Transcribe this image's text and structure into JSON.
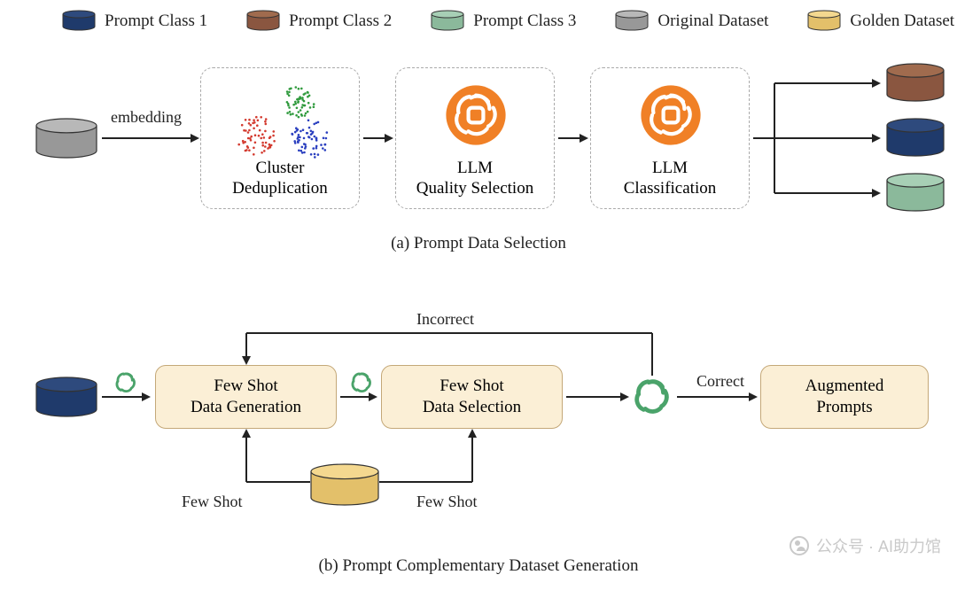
{
  "colors": {
    "prompt1": {
      "top": "#2e4a7d",
      "side": "#1f3a6b",
      "rim": "#2e4a7d"
    },
    "prompt2": {
      "top": "#a06b4e",
      "side": "#8a5640",
      "rim": "#a06b4e"
    },
    "prompt3": {
      "top": "#a7cfb5",
      "side": "#8bb99b",
      "rim": "#a7cfb5"
    },
    "original": {
      "top": "#b8b8b8",
      "side": "#989898",
      "rim": "#b8b8b8"
    },
    "golden": {
      "top": "#f4d88f",
      "side": "#e3c06a",
      "rim": "#f4d88f"
    },
    "llm_orange": "#f08026",
    "openai_green": "#4aa36a",
    "box_bg": "#fbefd6",
    "box_border": "#c4a878",
    "dash_border": "#aaaaaa",
    "text": "#222222",
    "scatter_red": "#d33a2f",
    "scatter_green": "#2f9a3d",
    "scatter_blue": "#2a3fbf",
    "watermark": "#c9c9c9"
  },
  "legend": {
    "items": [
      {
        "key": "prompt1",
        "label": "Prompt Class 1"
      },
      {
        "key": "prompt2",
        "label": "Prompt Class 2"
      },
      {
        "key": "prompt3",
        "label": "Prompt Class 3"
      },
      {
        "key": "original",
        "label": "Original Dataset"
      },
      {
        "key": "golden",
        "label": "Golden Dataset"
      }
    ]
  },
  "panel_a": {
    "caption": "(a) Prompt Data Selection",
    "input_db": "original",
    "edge_label": "embedding",
    "steps": [
      {
        "label_line1": "Cluster",
        "label_line2": "Deduplication"
      },
      {
        "label_line1": "LLM",
        "label_line2": "Quality Selection"
      },
      {
        "label_line1": "LLM",
        "label_line2": "Classification"
      }
    ],
    "outputs": [
      "prompt2",
      "prompt1",
      "prompt3"
    ]
  },
  "panel_b": {
    "caption": "(b) Prompt Complementary Dataset Generation",
    "input_db": "prompt1",
    "golden_db": "golden",
    "box1_line1": "Few Shot",
    "box1_line2": "Data Generation",
    "box2_line1": "Few Shot",
    "box2_line2": "Data Selection",
    "box3_line1": "Augmented",
    "box3_line2": "Prompts",
    "fewshot_label": "Few Shot",
    "incorrect_label": "Incorrect",
    "correct_label": "Correct"
  },
  "watermark": "公众号 · AI助力馆"
}
